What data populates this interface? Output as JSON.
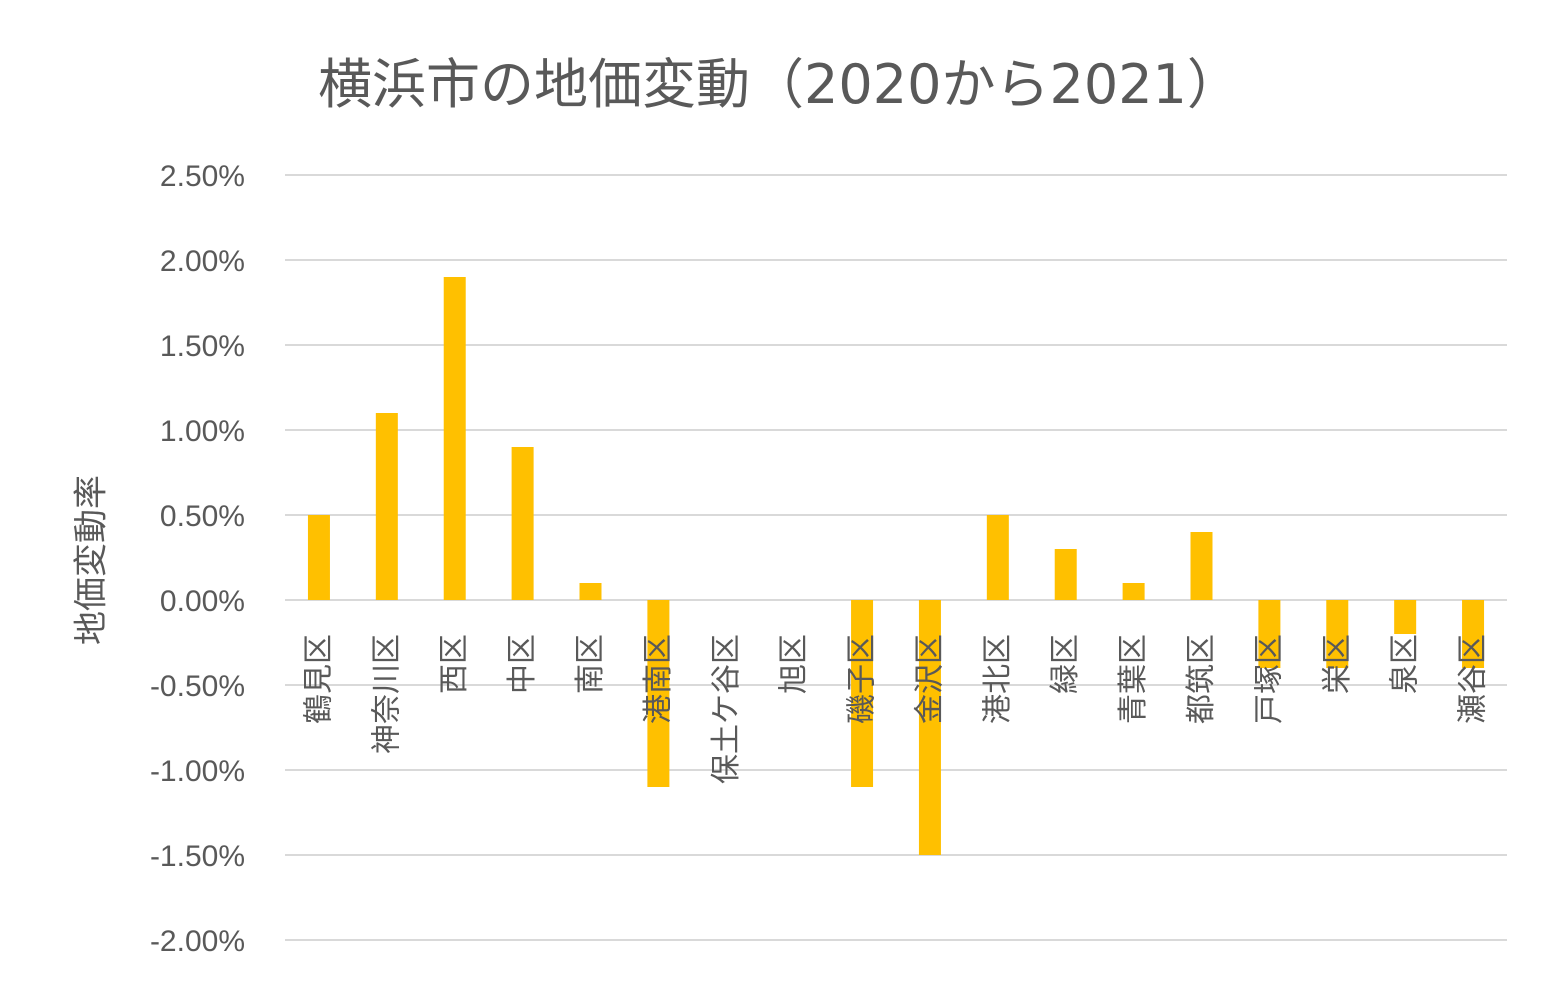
{
  "chart_data": {
    "type": "bar",
    "title": "横浜市の地価変動（2020から2021）",
    "ylabel": "地価変動率",
    "xlabel": "",
    "ylim": [
      -0.02,
      0.025
    ],
    "y_ticks": [
      {
        "value": 0.025,
        "label": "2.50%"
      },
      {
        "value": 0.02,
        "label": "2.00%"
      },
      {
        "value": 0.015,
        "label": "1.50%"
      },
      {
        "value": 0.01,
        "label": "1.00%"
      },
      {
        "value": 0.005,
        "label": "0.50%"
      },
      {
        "value": 0.0,
        "label": "0.00%"
      },
      {
        "value": -0.005,
        "label": "-0.50%"
      },
      {
        "value": -0.01,
        "label": "-1.00%"
      },
      {
        "value": -0.015,
        "label": "-1.50%"
      },
      {
        "value": -0.02,
        "label": "-2.00%"
      }
    ],
    "grid": true,
    "legend": "none",
    "bar_color": "#FFC000",
    "categories": [
      "鶴見区",
      "神奈川区",
      "西区",
      "中区",
      "南区",
      "港南区",
      "保土ケ谷区",
      "旭区",
      "磯子区",
      "金沢区",
      "港北区",
      "緑区",
      "青葉区",
      "都筑区",
      "戸塚区",
      "栄区",
      "泉区",
      "瀬谷区"
    ],
    "values": [
      0.005,
      0.011,
      0.019,
      0.009,
      0.001,
      -0.011,
      0.0,
      0.0,
      -0.011,
      -0.015,
      0.005,
      0.003,
      0.001,
      0.004,
      -0.004,
      -0.004,
      -0.002,
      -0.004
    ]
  }
}
